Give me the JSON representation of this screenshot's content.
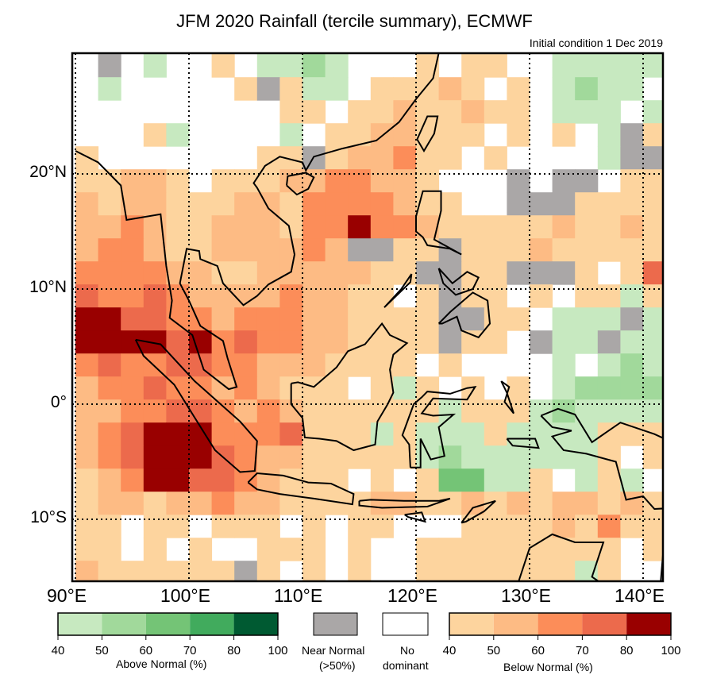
{
  "title": "JFM 2020 Rainfall (tercile summary), ECMWF",
  "subtitle": "Initial condition 1 Dec 2019",
  "axes": {
    "lat_labels": [
      {
        "value": 20,
        "text": "20°N"
      },
      {
        "value": 10,
        "text": "10°N"
      },
      {
        "value": 0,
        "text": "0°"
      },
      {
        "value": -10,
        "text": "10°S"
      }
    ],
    "lon_labels": [
      {
        "value": 90,
        "text": "90°E"
      },
      {
        "value": 100,
        "text": "100°E"
      },
      {
        "value": 110,
        "text": "110°E"
      },
      {
        "value": 120,
        "text": "120°E"
      },
      {
        "value": 130,
        "text": "130°E"
      },
      {
        "value": 140,
        "text": "140°E"
      }
    ],
    "extent": {
      "lon": [
        90,
        142.2
      ],
      "lat": [
        -15.6,
        30.4
      ]
    }
  },
  "colors": {
    "g": "#c7e9c0",
    "G": "#a1d99b",
    "H": "#74c476",
    "I": "#41ab5d",
    "J": "#005a32",
    "n": "#aaa7a7",
    "a": "#fdd49e",
    "b": "#fdbb84",
    "c": "#fc8d59",
    "d": "#ec6a4c",
    "e": "#990000"
  },
  "grid": {
    "cell_deg": 2,
    "lon_start": 90,
    "lat_start": 30,
    "rows": [
      ".n.g..a.ggGg...a.aa..ggggg",
      ".g.....anagg.aaaba.a.gGgg.",
      ".........aa.aabaabaa.ggg.g",
      "...ag....g.aabbaaa.a.a.gna",
      "a.......aanabbcaa.a....gnn",
      "aabba.aaabbccbba...n.nn.aa",
      "babbaaabbaccccbaa..nnnaaaa",
      "bbcbaabbbacceccbaaaaabaaba",
      "bccbaabbbbcbnnaanaaabaaaaa",
      "ccccbbaabbbbbaannaannna.ad",
      "dccdcbbbbcbbaa.anaa.a.aaga",
      "eeddccbcccbbaaaannaa.gggng",
      "eeeedecdccbbaaaanaa.nggngg",
      "cdccddccbbbaaaa.a....g.gGg",
      "bccdccbcbaaa.aga.a.a.gGGGG",
      "bbccddcbcbaaaaaagaaagGgggg",
      "bcdeeecccdaaagagggaggggaaa",
      "bcdeeedcbbaaaaagGgggggga.a",
      "abceeddcbaaa.a.aHHgga.gag.",
      "abbabbcbbaaaabbaabababbaba",
      "aa.aa.aaa.a.aa...aaaabacaa",
      "aa.a.a..aaa.a..aaaaaaaaa.a",
      "baaaaaana.a.a..aaaaaaaga.."
    ]
  },
  "legend": {
    "above": {
      "label": "Above Normal (%)",
      "ticks": [
        "40",
        "50",
        "60",
        "70",
        "80",
        "100"
      ],
      "colors": [
        "#c7e9c0",
        "#a1d99b",
        "#74c476",
        "#41ab5d",
        "#005a32"
      ]
    },
    "near": {
      "label1": "Near Normal",
      "label2": "(>50%)",
      "color": "#aaa7a7"
    },
    "none": {
      "label1": "No",
      "label2": "dominant",
      "color": "#ffffff"
    },
    "below": {
      "label": "Below Normal (%)",
      "ticks": [
        "40",
        "50",
        "60",
        "70",
        "80",
        "100"
      ],
      "colors": [
        "#fdd49e",
        "#fdbb84",
        "#fc8d59",
        "#ec6a4c",
        "#990000"
      ]
    }
  }
}
